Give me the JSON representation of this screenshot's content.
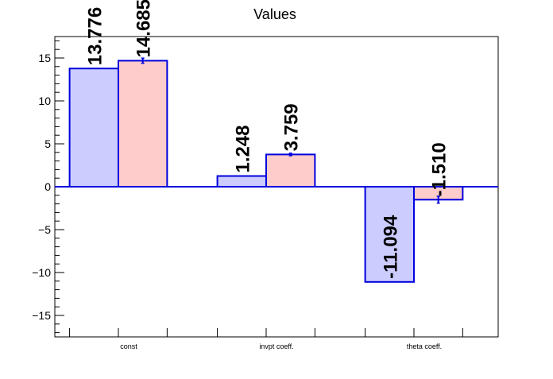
{
  "chart_data": {
    "type": "bar",
    "title": "Values",
    "xlabel": "",
    "ylabel": "",
    "categories": [
      "const",
      "invpt coeff.",
      "theta coeff."
    ],
    "ylim": [
      -17.5,
      17.5
    ],
    "yticks": [
      -15,
      -10,
      -5,
      0,
      5,
      10,
      15
    ],
    "grid": false,
    "series": [
      {
        "values": [
          13.776,
          1.248,
          -11.094
        ],
        "labels": [
          "13.776",
          "1.248",
          "-11.094"
        ],
        "errors": [
          0,
          0,
          0
        ],
        "fill": "#ccccff",
        "stroke": "#0000dd"
      },
      {
        "values": [
          14.685,
          3.759,
          -1.51
        ],
        "labels": [
          "14.685",
          "3.759",
          "-1.510"
        ],
        "errors": [
          0.3,
          0.15,
          0.4
        ],
        "fill": "#ffcccc",
        "stroke": "#0000dd"
      }
    ]
  }
}
